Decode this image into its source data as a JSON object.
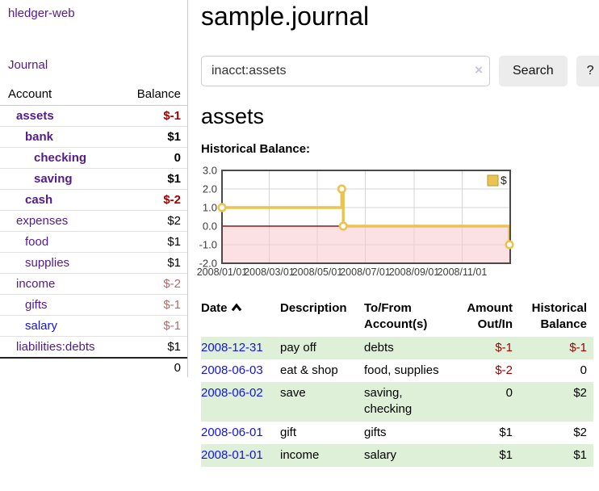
{
  "brand": "hledger-web",
  "sidebar": {
    "journal_link": "Journal",
    "header": {
      "account": "Account",
      "balance": "Balance"
    },
    "accounts": [
      {
        "name": "assets",
        "level": 1,
        "bold": true,
        "balance": "$-1",
        "balance_style": "neg-strong"
      },
      {
        "name": "bank",
        "level": 2,
        "bold": true,
        "balance": "$1",
        "balance_style": "pos"
      },
      {
        "name": "checking",
        "level": 3,
        "bold": true,
        "balance": "0",
        "balance_style": "pos"
      },
      {
        "name": "saving",
        "level": 3,
        "bold": true,
        "balance": "$1",
        "balance_style": "pos"
      },
      {
        "name": "cash",
        "level": 2,
        "bold": true,
        "balance": "$-2",
        "balance_style": "neg-strong"
      },
      {
        "name": "expenses",
        "level": 1,
        "bold": false,
        "balance": "$2",
        "balance_style": "pos"
      },
      {
        "name": "food",
        "level": 2,
        "bold": false,
        "balance": "$1",
        "balance_style": "pos"
      },
      {
        "name": "supplies",
        "level": 2,
        "bold": false,
        "balance": "$1",
        "balance_style": "pos"
      },
      {
        "name": "income",
        "level": 1,
        "bold": false,
        "balance": "$-2",
        "balance_style": "neg-muted"
      },
      {
        "name": "gifts",
        "level": 2,
        "bold": false,
        "balance": "$-1",
        "balance_style": "neg-muted"
      },
      {
        "name": "salary",
        "level": 2,
        "bold": false,
        "balance": "$-1",
        "balance_style": "neg-muted",
        "link_style": "blue"
      },
      {
        "name": "liabilities:debts",
        "level": 1,
        "bold": false,
        "balance": "$1",
        "balance_style": "pos"
      }
    ],
    "total": "0"
  },
  "header": {
    "title": "sample.journal"
  },
  "search": {
    "value": "inacct:assets",
    "clear_icon": "×",
    "button_label": "Search",
    "help_label": "?"
  },
  "account_page": {
    "heading": "assets",
    "chart_label": "Historical Balance:"
  },
  "chart_data": {
    "type": "line",
    "step": true,
    "series": [
      {
        "name": "$",
        "x": [
          "2008-01-01",
          "2008-06-01",
          "2008-06-03",
          "2008-12-31"
        ],
        "y": [
          1,
          2,
          0,
          -1
        ]
      }
    ],
    "title": "Historical Balance:",
    "xlim": [
      "2008-01-01",
      "2009-01-01"
    ],
    "ylim": [
      -2,
      3
    ],
    "yticks": [
      3,
      2,
      1,
      0,
      -1,
      -2
    ],
    "ytick_labels": [
      "3.0",
      "2.0",
      "1.0",
      "0.0",
      "-1.0",
      "-2.0"
    ],
    "xticks": [
      "2008-01-01",
      "2008-03-01",
      "2008-05-01",
      "2008-07-01",
      "2008-09-01",
      "2008-11-01"
    ],
    "xtick_labels": [
      "2008/01/01",
      "2008/03/01",
      "2008/05/01",
      "2008/07/01",
      "2008/09/01",
      "2008/11/01"
    ],
    "grid": true,
    "legend": {
      "label": "$",
      "position": "top-right"
    },
    "colors": {
      "line": "#e9c453",
      "marker_fill": "#ffffff",
      "negative_fill": "rgba(250,200,205,0.55)",
      "zero_line": "#8b1a1a",
      "grid": "#d4d4d4",
      "border": "#4a4a4a",
      "tick_text": "#3c3c3c"
    }
  },
  "register": {
    "columns": [
      {
        "lines": [
          "Date"
        ],
        "align": "left",
        "sorted": "asc"
      },
      {
        "lines": [
          "Description"
        ],
        "align": "left"
      },
      {
        "lines": [
          "To/From",
          "Account(s)"
        ],
        "align": "left"
      },
      {
        "lines": [
          "Amount",
          "Out/In"
        ],
        "align": "right"
      },
      {
        "lines": [
          "Historical",
          "Balance"
        ],
        "align": "right"
      }
    ],
    "rows": [
      {
        "date": "2008-12-31",
        "description": "pay off",
        "accounts": "debts",
        "amount": "$-1",
        "balance": "$-1"
      },
      {
        "date": "2008-06-03",
        "description": "eat & shop",
        "accounts": "food, supplies",
        "amount": "$-2",
        "balance": "0"
      },
      {
        "date": "2008-06-02",
        "description": "save",
        "accounts": "saving, checking",
        "amount": "0",
        "balance": "$2"
      },
      {
        "date": "2008-06-01",
        "description": "gift",
        "accounts": "gifts",
        "amount": "$1",
        "balance": "$2"
      },
      {
        "date": "2008-01-01",
        "description": "income",
        "accounts": "salary",
        "amount": "$1",
        "balance": "$1"
      }
    ]
  }
}
